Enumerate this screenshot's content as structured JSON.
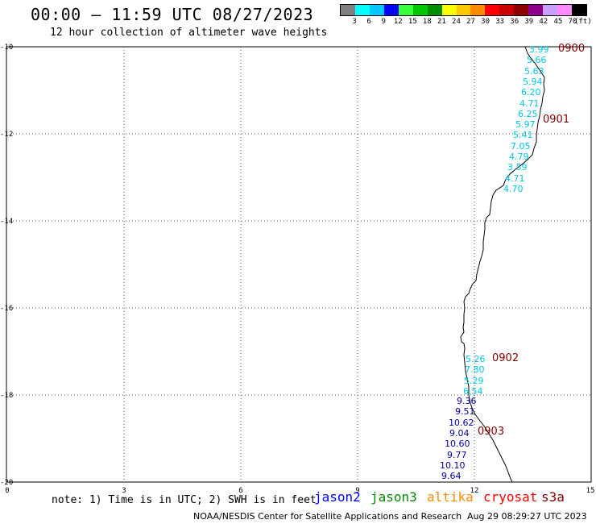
{
  "header": {
    "title": "00:00 – 11:59 UTC 08/27/2023",
    "subtitle": "12 hour collection of altimeter wave heights"
  },
  "color_scale": {
    "colors": [
      "#7f7f7f",
      "#00ffff",
      "#00c8ff",
      "#0000ff",
      "#3cff3c",
      "#00c800",
      "#008c00",
      "#ffff00",
      "#ffc800",
      "#ff8c00",
      "#ff0000",
      "#c80000",
      "#8c0000",
      "#8c008c",
      "#c8a0ff",
      "#ff8cff",
      "#000000"
    ],
    "labels": [
      "3",
      "6",
      "9",
      "12",
      "15",
      "18",
      "21",
      "24",
      "27",
      "30",
      "33",
      "36",
      "39",
      "42",
      "45",
      "70"
    ],
    "unit": "(ft)"
  },
  "axes": {
    "y_labels": [
      "-10",
      "-12",
      "-14",
      "-16",
      "-18",
      "-20"
    ],
    "x_labels": [
      "0",
      "3",
      "6",
      "9",
      "12",
      "15"
    ]
  },
  "passes": [
    "0900",
    "0901",
    "0902",
    "0903"
  ],
  "wave_heights": {
    "group1": [
      "3.99",
      "5.66",
      "5.63",
      "5.94",
      "6.20",
      "4.71",
      "6.25",
      "5.97",
      "5.41",
      "7.05",
      "4.79",
      "3.59",
      "4.71",
      "4.70"
    ],
    "group2": [
      "5.26",
      "7.80",
      "5.29",
      "6.54"
    ],
    "group3": [
      "9.36",
      "9.51",
      "10.62",
      "9.04",
      "10.60",
      "9.77",
      "10.10",
      "9.64"
    ]
  },
  "colors": {
    "low_swh": "#00c8e6",
    "high_swh": "#0000a0",
    "pass_time": "#800000"
  },
  "footer": {
    "note": "note: 1) Time is in UTC; 2) SWH is in feet",
    "satellites": [
      {
        "name": "jason2",
        "color": "#0000ff"
      },
      {
        "name": "jason3",
        "color": "#008c00"
      },
      {
        "name": "altika",
        "color": "#ff8c00"
      },
      {
        "name": "cryosat",
        "color": "#ff0000"
      },
      {
        "name": "s3a",
        "color": "#800000"
      }
    ],
    "credit": "NOAA/NESDIS Center for Satellite Applications and Research",
    "timestamp": "Aug 29 08:29:27 UTC 2023"
  }
}
